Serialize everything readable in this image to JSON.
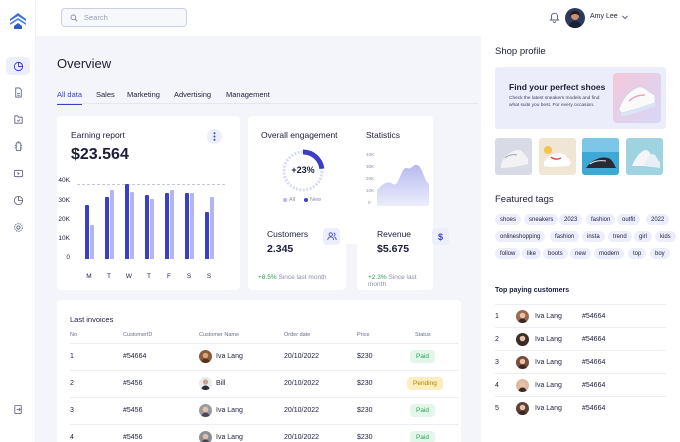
{
  "search": {
    "placeholder": "Search"
  },
  "user": {
    "name": "Amy Lee"
  },
  "nav": [
    "dashboard-icon",
    "document-icon",
    "folder-icon",
    "battery-icon",
    "video-icon",
    "pie-chart-icon",
    "settings-icon",
    "logout-icon"
  ],
  "page": {
    "title": "Overview"
  },
  "tabs": [
    "All data",
    "Sales",
    "Marketing",
    "Advertising",
    "Management"
  ],
  "earning": {
    "title": "Earning report",
    "value": "$23.564",
    "chart_data": {
      "type": "bar",
      "categories": [
        "M",
        "T",
        "W",
        "T",
        "F",
        "S",
        "S"
      ],
      "series": [
        {
          "values": [
            29,
            33,
            40,
            34,
            35,
            35,
            25
          ]
        },
        {
          "values": [
            18,
            37,
            36,
            32,
            37,
            35,
            33
          ]
        }
      ],
      "yticks": [
        "40K",
        "30K",
        "20K",
        "10K",
        "0"
      ],
      "ylim": [
        0,
        40
      ],
      "colors": [
        "#3b3fc8",
        "#b3b5ee"
      ]
    }
  },
  "engagement": {
    "title": "Overall engagement",
    "value": "+23%",
    "percent": 23,
    "legend": [
      "All",
      "New"
    ]
  },
  "statistics": {
    "title": "Statistics",
    "yticks": [
      "40K",
      "30K",
      "20K",
      "10K",
      "0"
    ]
  },
  "customers": {
    "title": "Customers",
    "value": "2.345",
    "change": "+8.5%",
    "since": "Since last month"
  },
  "revenue": {
    "title": "Revenue",
    "value": "$5.675",
    "change": "+2.3%",
    "since": "Since last month"
  },
  "invoices": {
    "title": "Last invoices",
    "headers": [
      "No",
      "CustomerID",
      "Customer Name",
      "Order date",
      "Price",
      "Status"
    ],
    "rows": [
      {
        "no": "1",
        "id": "#54664",
        "name": "Iva Lang",
        "date": "20/10/2022",
        "price": "$230",
        "status": "Paid"
      },
      {
        "no": "2",
        "id": "#5456",
        "name": "Bill",
        "date": "20/10/2022",
        "price": "$230",
        "status": "Pending"
      },
      {
        "no": "3",
        "id": "#5456",
        "name": "Iva Lang",
        "date": "20/10/2022",
        "price": "$230",
        "status": "Paid"
      },
      {
        "no": "4",
        "id": "#5456",
        "name": "Iva Lang",
        "date": "20/10/2022",
        "price": "$230",
        "status": "Paid"
      }
    ]
  },
  "shop": {
    "title": "Shop profile",
    "banner_title": "Find your perfect shoes",
    "banner_desc": "Check the latest sneakers models and find what suits you best. For every occasion."
  },
  "featured": {
    "title": "Featured tags",
    "tags": [
      "shoes",
      "sneakers",
      "2023",
      "fashion",
      "outfit",
      "2022",
      "onlineshopping",
      "fashion",
      "insta",
      "trend",
      "girl",
      "kids",
      "follow",
      "like",
      "boots",
      "new",
      "modern",
      "top",
      "boy"
    ]
  },
  "top_paying": {
    "title": "Top paying customers",
    "rows": [
      {
        "no": "1",
        "name": "Iva Lang",
        "id": "#54664"
      },
      {
        "no": "2",
        "name": "Iva Lang",
        "id": "#54664"
      },
      {
        "no": "3",
        "name": "Iva Lang",
        "id": "#54664"
      },
      {
        "no": "4",
        "name": "Iva Lang",
        "id": "#54664"
      },
      {
        "no": "5",
        "name": "Iva Lang",
        "id": "#54664"
      }
    ]
  }
}
